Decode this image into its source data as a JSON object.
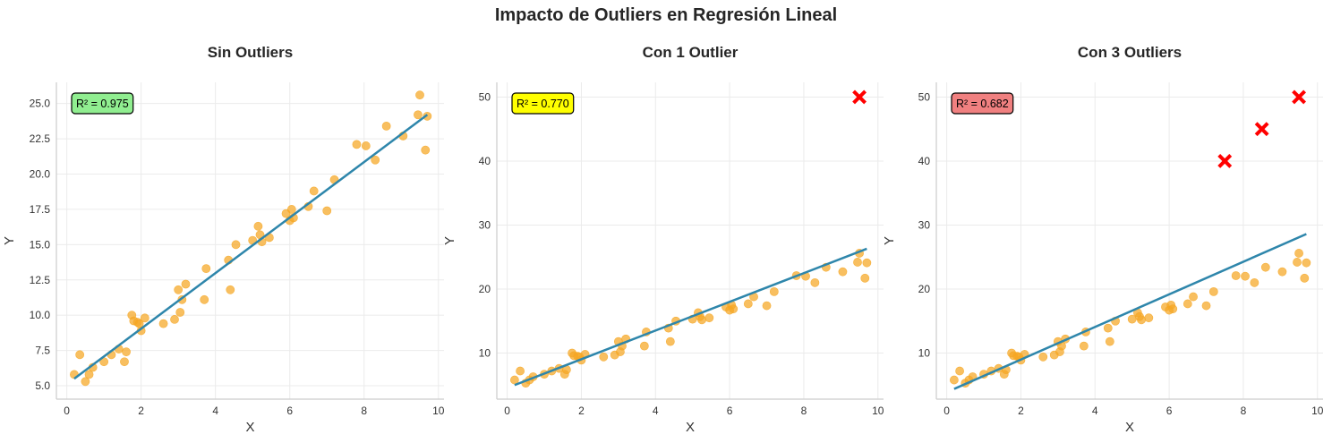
{
  "suptitle": "Impacto de Outliers en Regresión Lineal",
  "colors": {
    "points": "#f5a623",
    "line": "#2e86ab",
    "outlier": "#ff0000"
  },
  "chart_data": [
    {
      "type": "scatter",
      "title": "Sin Outliers",
      "xlabel": "X",
      "ylabel": "Y",
      "xlim": [
        -0.28,
        10.15
      ],
      "ylim": [
        4.05,
        26.5
      ],
      "xticks": [
        "0",
        "2",
        "4",
        "6",
        "8",
        "10"
      ],
      "xtick_values": [
        0,
        2,
        4,
        6,
        8,
        10
      ],
      "yticks": [
        "5.0",
        "7.5",
        "10.0",
        "12.5",
        "15.0",
        "17.5",
        "20.0",
        "22.5",
        "25.0"
      ],
      "ytick_values": [
        5,
        7.5,
        10,
        12.5,
        15,
        17.5,
        20,
        22.5,
        25
      ],
      "grid": true,
      "r2_label": "R² = 0.975",
      "r2_color": "#90ee90",
      "fit_line": {
        "x": [
          0.2,
          9.7
        ],
        "y": [
          5.5,
          24.2
        ]
      },
      "points": {
        "x": [
          0.2,
          0.35,
          0.5,
          0.6,
          0.7,
          1.0,
          1.2,
          1.4,
          1.55,
          1.6,
          1.75,
          1.8,
          1.9,
          1.95,
          2.0,
          2.1,
          2.6,
          2.9,
          3.0,
          3.05,
          3.1,
          3.2,
          3.7,
          3.75,
          4.35,
          4.4,
          4.55,
          5.0,
          5.15,
          5.2,
          5.25,
          5.45,
          5.9,
          6.0,
          6.05,
          6.1,
          6.5,
          6.65,
          7.0,
          7.2,
          7.8,
          8.05,
          8.3,
          8.6,
          9.05,
          9.45,
          9.5,
          9.65,
          9.7
        ],
        "y": [
          5.8,
          7.2,
          5.3,
          5.8,
          6.3,
          6.7,
          7.2,
          7.6,
          6.7,
          7.4,
          10.0,
          9.6,
          9.5,
          9.4,
          8.9,
          9.8,
          9.4,
          9.7,
          11.8,
          10.2,
          11.1,
          12.2,
          11.1,
          13.3,
          13.9,
          11.8,
          15.0,
          15.3,
          16.3,
          15.7,
          15.2,
          15.5,
          17.2,
          16.7,
          17.5,
          16.9,
          17.7,
          18.8,
          17.4,
          19.6,
          22.1,
          22.0,
          21.0,
          23.4,
          22.7,
          24.2,
          25.6,
          21.7,
          24.1
        ]
      },
      "outliers": {
        "x": [],
        "y": []
      }
    },
    {
      "type": "scatter",
      "title": "Con 1 Outlier",
      "xlabel": "X",
      "ylabel": "Y",
      "xlim": [
        -0.28,
        10.15
      ],
      "ylim": [
        2.8,
        52.3
      ],
      "xticks": [
        "0",
        "2",
        "4",
        "6",
        "8",
        "10"
      ],
      "xtick_values": [
        0,
        2,
        4,
        6,
        8,
        10
      ],
      "yticks": [
        "10",
        "20",
        "30",
        "40",
        "50"
      ],
      "ytick_values": [
        10,
        20,
        30,
        40,
        50
      ],
      "grid": true,
      "r2_label": "R² = 0.770",
      "r2_color": "#ffff00",
      "fit_line": {
        "x": [
          0.2,
          9.7
        ],
        "y": [
          5.0,
          26.3
        ]
      },
      "points": {
        "x": [
          0.2,
          0.35,
          0.5,
          0.6,
          0.7,
          1.0,
          1.2,
          1.4,
          1.55,
          1.6,
          1.75,
          1.8,
          1.9,
          1.95,
          2.0,
          2.1,
          2.6,
          2.9,
          3.0,
          3.05,
          3.1,
          3.2,
          3.7,
          3.75,
          4.35,
          4.4,
          4.55,
          5.0,
          5.15,
          5.2,
          5.25,
          5.45,
          5.9,
          6.0,
          6.05,
          6.1,
          6.5,
          6.65,
          7.0,
          7.2,
          7.8,
          8.05,
          8.3,
          8.6,
          9.05,
          9.45,
          9.5,
          9.65,
          9.7
        ],
        "y": [
          5.8,
          7.2,
          5.3,
          5.8,
          6.3,
          6.7,
          7.2,
          7.6,
          6.7,
          7.4,
          10.0,
          9.6,
          9.5,
          9.4,
          8.9,
          9.8,
          9.4,
          9.7,
          11.8,
          10.2,
          11.1,
          12.2,
          11.1,
          13.3,
          13.9,
          11.8,
          15.0,
          15.3,
          16.3,
          15.7,
          15.2,
          15.5,
          17.2,
          16.7,
          17.5,
          16.9,
          17.7,
          18.8,
          17.4,
          19.6,
          22.1,
          22.0,
          21.0,
          23.4,
          22.7,
          24.2,
          25.6,
          21.7,
          24.1
        ]
      },
      "outliers": {
        "x": [
          9.5
        ],
        "y": [
          50
        ]
      }
    },
    {
      "type": "scatter",
      "title": "Con 3 Outliers",
      "xlabel": "X",
      "ylabel": "Y",
      "xlim": [
        -0.28,
        10.15
      ],
      "ylim": [
        2.8,
        52.3
      ],
      "xticks": [
        "0",
        "2",
        "4",
        "6",
        "8",
        "10"
      ],
      "xtick_values": [
        0,
        2,
        4,
        6,
        8,
        10
      ],
      "yticks": [
        "10",
        "20",
        "30",
        "40",
        "50"
      ],
      "ytick_values": [
        10,
        20,
        30,
        40,
        50
      ],
      "grid": true,
      "r2_label": "R² = 0.682",
      "r2_color": "#f08080",
      "fit_line": {
        "x": [
          0.2,
          9.7
        ],
        "y": [
          4.4,
          28.6
        ]
      },
      "points": {
        "x": [
          0.2,
          0.35,
          0.5,
          0.6,
          0.7,
          1.0,
          1.2,
          1.4,
          1.55,
          1.6,
          1.75,
          1.8,
          1.9,
          1.95,
          2.0,
          2.1,
          2.6,
          2.9,
          3.0,
          3.05,
          3.1,
          3.2,
          3.7,
          3.75,
          4.35,
          4.4,
          4.55,
          5.0,
          5.15,
          5.2,
          5.25,
          5.45,
          5.9,
          6.0,
          6.05,
          6.1,
          6.5,
          6.65,
          7.0,
          7.2,
          7.8,
          8.05,
          8.3,
          8.6,
          9.05,
          9.45,
          9.5,
          9.65,
          9.7
        ],
        "y": [
          5.8,
          7.2,
          5.3,
          5.8,
          6.3,
          6.7,
          7.2,
          7.6,
          6.7,
          7.4,
          10.0,
          9.6,
          9.5,
          9.4,
          8.9,
          9.8,
          9.4,
          9.7,
          11.8,
          10.2,
          11.1,
          12.2,
          11.1,
          13.3,
          13.9,
          11.8,
          15.0,
          15.3,
          16.3,
          15.7,
          15.2,
          15.5,
          17.2,
          16.7,
          17.5,
          16.9,
          17.7,
          18.8,
          17.4,
          19.6,
          22.1,
          22.0,
          21.0,
          23.4,
          22.7,
          24.2,
          25.6,
          21.7,
          24.1
        ]
      },
      "outliers": {
        "x": [
          7.5,
          8.5,
          9.5
        ],
        "y": [
          40,
          45,
          50
        ]
      }
    }
  ]
}
